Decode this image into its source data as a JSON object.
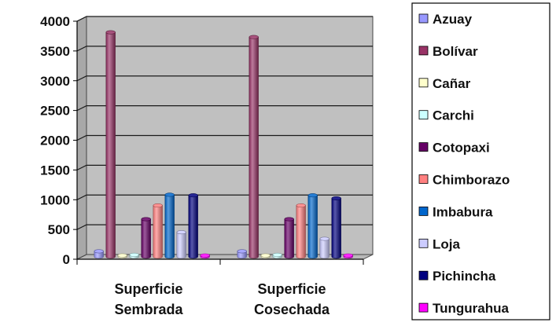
{
  "chart_data": {
    "type": "bar",
    "categories": [
      "Superficie Sembrada",
      "Superficie Cosechada"
    ],
    "category_lines": [
      [
        "Superficie",
        "Sembrada"
      ],
      [
        "Superficie",
        "Cosechada"
      ]
    ],
    "series": [
      {
        "name": "Azuay",
        "color": "#9999ff",
        "values": [
          90,
          90
        ]
      },
      {
        "name": "Bolívar",
        "color": "#993366",
        "values": [
          3770,
          3690
        ]
      },
      {
        "name": "Cañar",
        "color": "#ffffcc",
        "values": [
          20,
          20
        ]
      },
      {
        "name": "Carchi",
        "color": "#ccffff",
        "values": [
          30,
          30
        ]
      },
      {
        "name": "Cotopaxi",
        "color": "#660066",
        "values": [
          630,
          630
        ]
      },
      {
        "name": "Chimborazo",
        "color": "#ff8080",
        "values": [
          860,
          860
        ]
      },
      {
        "name": "Imbabura",
        "color": "#0066cc",
        "values": [
          1040,
          1030
        ]
      },
      {
        "name": "Loja",
        "color": "#ccccff",
        "values": [
          410,
          300
        ]
      },
      {
        "name": "Pichincha",
        "color": "#000080",
        "values": [
          1030,
          980
        ]
      },
      {
        "name": "Tungurahua",
        "color": "#ff00ff",
        "values": [
          10,
          10
        ]
      }
    ],
    "yticks": [
      0,
      500,
      1000,
      1500,
      2000,
      2500,
      3000,
      3500,
      4000
    ],
    "ylim": [
      0,
      4000
    ],
    "grid": true,
    "legend_position": "right",
    "title": "",
    "xlabel": "",
    "ylabel": ""
  }
}
